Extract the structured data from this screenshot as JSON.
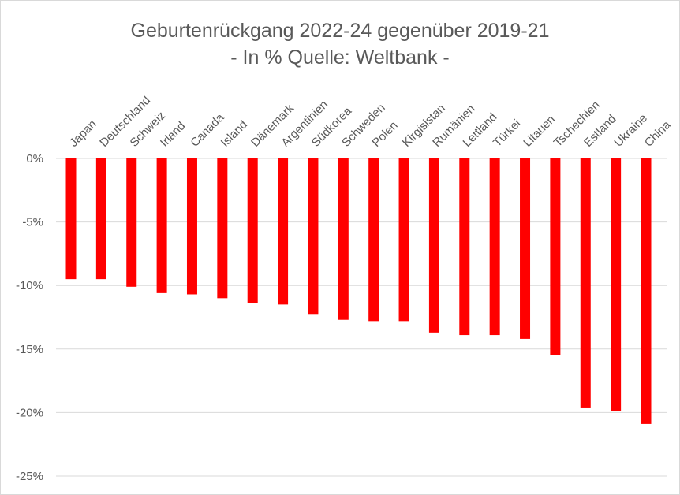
{
  "chart_data": {
    "type": "bar",
    "title": "Geburtenrückgang  2022-24 gegenüber 2019-21",
    "subtitle": "- In % Quelle: Weltbank -",
    "categories": [
      "Japan",
      "Deutschland",
      "Schweiz",
      "Irland",
      "Canada",
      "Island",
      "Dänemark",
      "Argentinien",
      "Südkorea",
      "Schweden",
      "Polen",
      "Kirgisistan",
      "Rumänien",
      "Lettland",
      "Türkei",
      "Litauen",
      "Tschechien",
      "Estland",
      "Ukraine",
      "China"
    ],
    "values": [
      -9.5,
      -9.5,
      -10.1,
      -10.6,
      -10.7,
      -11.0,
      -11.4,
      -11.5,
      -12.3,
      -12.7,
      -12.8,
      -12.8,
      -13.7,
      -13.9,
      -13.9,
      -14.2,
      -15.5,
      -19.6,
      -19.9,
      -20.9
    ],
    "yticks": [
      0,
      -5,
      -10,
      -15,
      -20,
      -25
    ],
    "ytick_labels": [
      "0%",
      "-5%",
      "-10%",
      "-15%",
      "-20%",
      "-25%"
    ],
    "ylim": [
      -25,
      0
    ],
    "grid": true,
    "legend": "none",
    "bar_color": "#ff0000"
  }
}
